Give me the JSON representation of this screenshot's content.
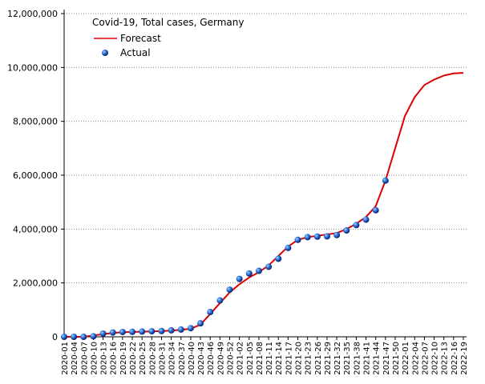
{
  "chart_data": {
    "type": "line",
    "title": "Covid-19, Total cases, Germany",
    "categories": [
      "2020-01",
      "2020-04",
      "2020-07",
      "2020-10",
      "2020-13",
      "2020-16",
      "2020-19",
      "2020-22",
      "2020-25",
      "2020-28",
      "2020-31",
      "2020-34",
      "2020-37",
      "2020-40",
      "2020-43",
      "2020-46",
      "2020-49",
      "2020-52",
      "2021-02",
      "2021-05",
      "2021-08",
      "2021-11",
      "2021-14",
      "2021-17",
      "2021-20",
      "2021-23",
      "2021-26",
      "2021-29",
      "2021-32",
      "2021-35",
      "2021-38",
      "2021-41",
      "2021-44",
      "2021-47",
      "2021-50",
      "2022-01",
      "2022-04",
      "2022-07",
      "2022-10",
      "2022-13",
      "2022-16",
      "2022-19"
    ],
    "series": [
      {
        "name": "Forecast",
        "color": "#dd0000",
        "values": [
          0,
          0,
          0,
          50000,
          100000,
          140000,
          170000,
          180000,
          190000,
          200000,
          210000,
          230000,
          260000,
          300000,
          450000,
          850000,
          1250000,
          1650000,
          1950000,
          2200000,
          2400000,
          2650000,
          3000000,
          3350000,
          3600000,
          3700000,
          3750000,
          3800000,
          3850000,
          4000000,
          4200000,
          4450000,
          4850000,
          5800000,
          7000000,
          8200000,
          8900000,
          9350000,
          9550000,
          9700000,
          9780000,
          9800000
        ]
      },
      {
        "name": "Actual",
        "color": "#1f5fd0",
        "values": [
          0,
          0,
          0,
          20000,
          120000,
          160000,
          180000,
          185000,
          195000,
          205000,
          215000,
          240000,
          270000,
          320000,
          500000,
          920000,
          1350000,
          1750000,
          2150000,
          2350000,
          2450000,
          2600000,
          2900000,
          3300000,
          3600000,
          3700000,
          3720000,
          3730000,
          3780000,
          3950000,
          4150000,
          4350000,
          4700000,
          5800000,
          null,
          null,
          null,
          null,
          null,
          null,
          null,
          null
        ]
      }
    ],
    "ylim": [
      0,
      12000000
    ],
    "yticks": [
      0,
      {
        "value": 2000000,
        "label": "2,000,000"
      },
      {
        "value": 4000000,
        "label": "4,000,000"
      },
      {
        "value": 6000000,
        "label": "6,000,000"
      },
      {
        "value": 8000000,
        "label": "8,000,000"
      },
      {
        "value": 10000000,
        "label": "10,000,000"
      },
      {
        "value": 12000000,
        "label": "12,000,000"
      }
    ],
    "grid": true
  }
}
